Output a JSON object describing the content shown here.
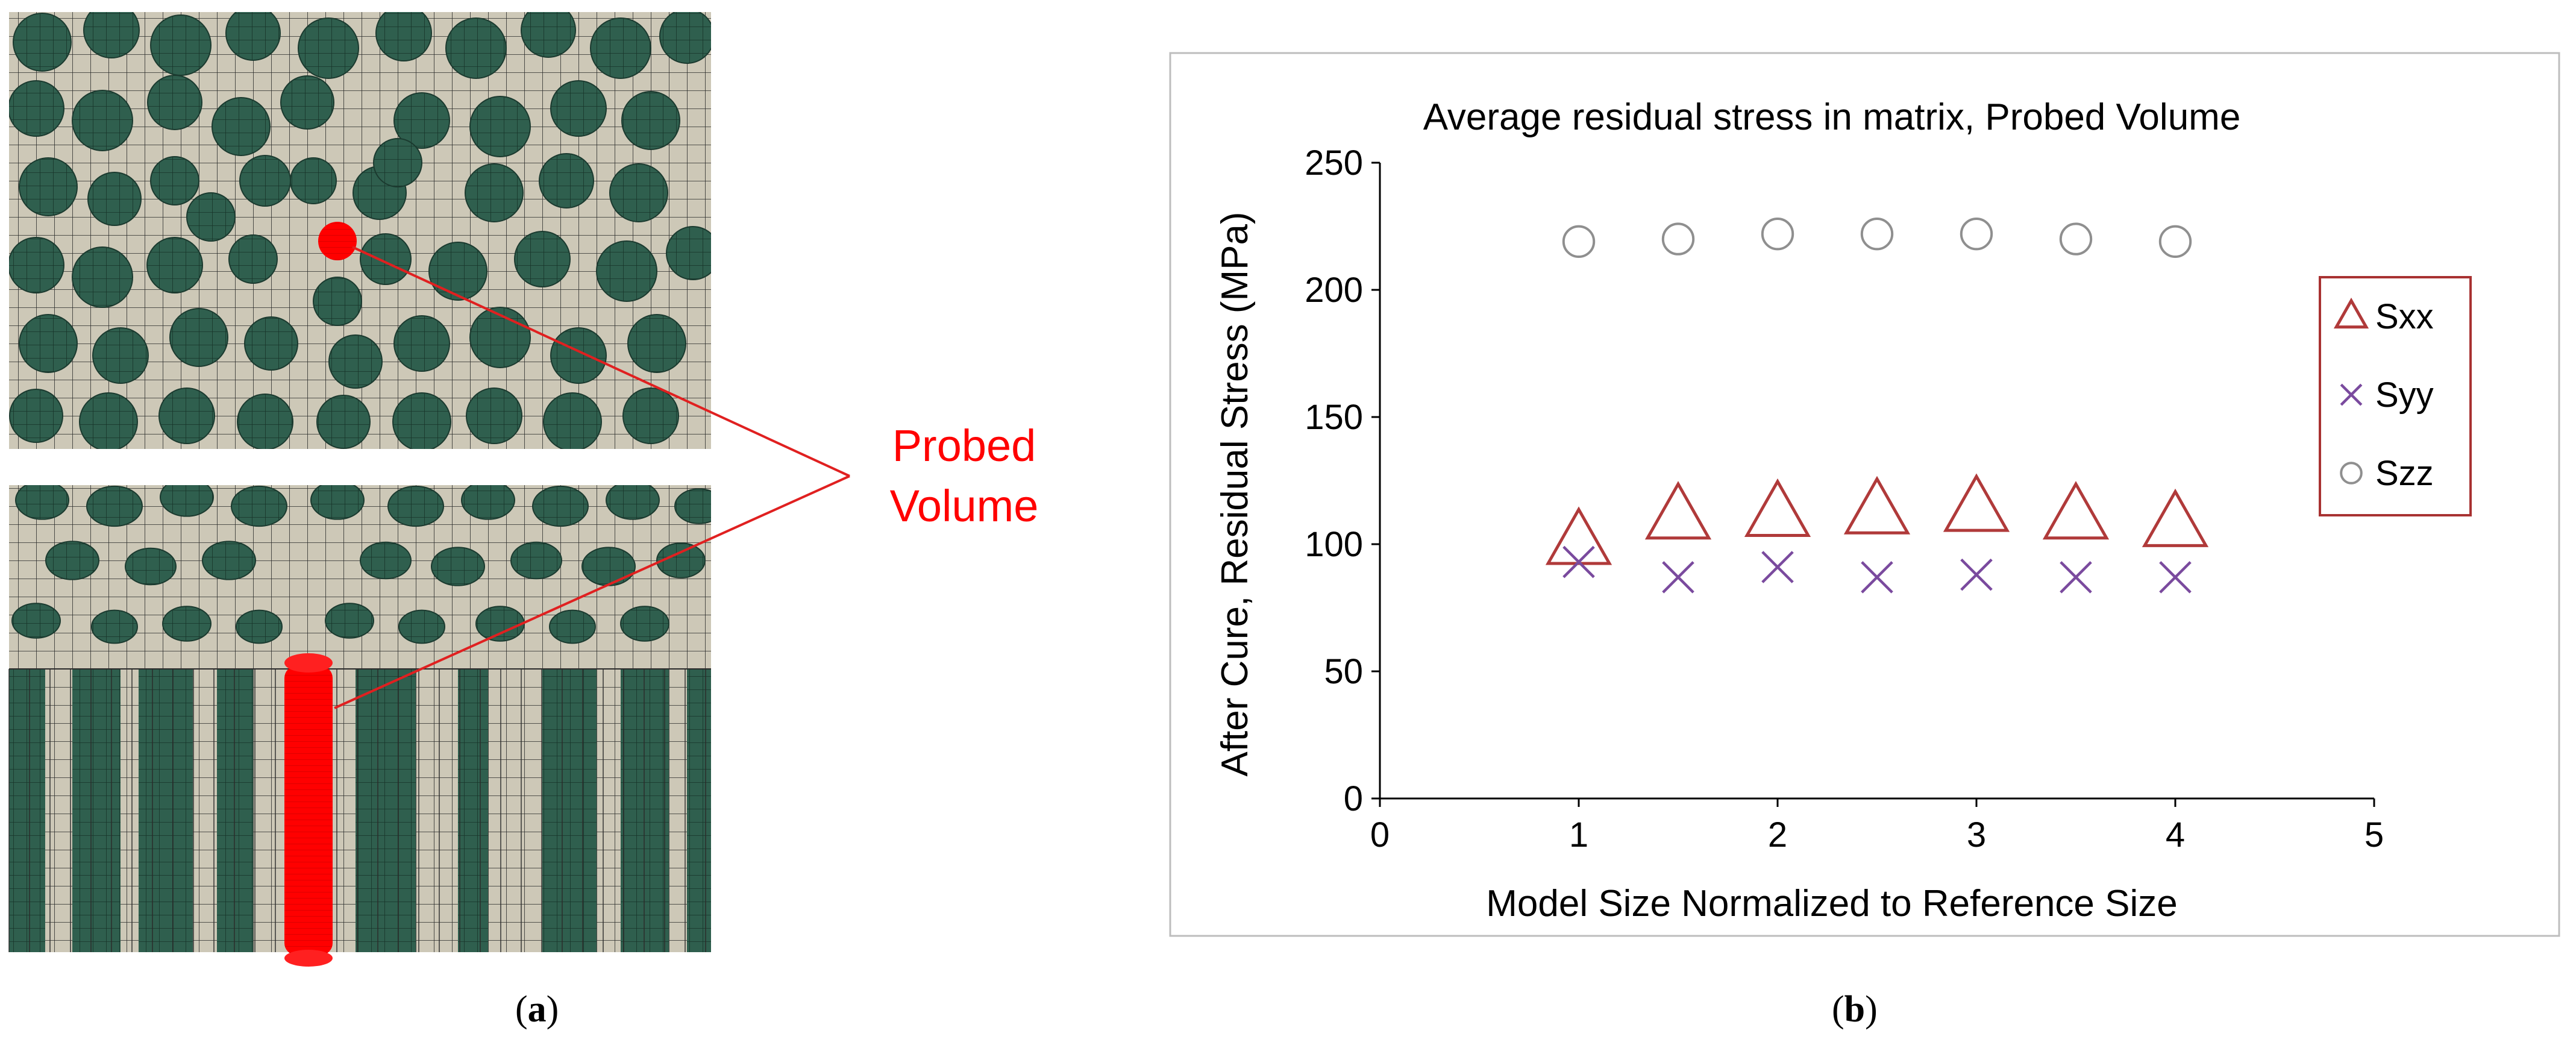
{
  "panel_a": {
    "callout_line1": "Probed",
    "callout_line2": "Volume",
    "label_letter": "a"
  },
  "panel_b": {
    "label_letter": "b"
  },
  "colors": {
    "fiber": "#2f5f4e",
    "matrix": "#cdc8b7",
    "mesh": "#2a2a2a",
    "probe": "#ff0000",
    "callout_text": "#ff0000",
    "sxx": "#b03a3a",
    "syy": "#7a4a9e",
    "szz": "#8f8f8f"
  },
  "chart_data": {
    "type": "scatter",
    "title": "Average residual stress in matrix, Probed Volume",
    "xlabel": "Model Size Normalized to Reference Size",
    "ylabel": "After Cure, Residual Stress (MPa)",
    "xlim": [
      0,
      5
    ],
    "ylim": [
      0,
      250
    ],
    "xticks": [
      0,
      1,
      2,
      3,
      4,
      5
    ],
    "yticks": [
      0,
      50,
      100,
      150,
      200,
      250
    ],
    "grid": false,
    "legend_position": "right",
    "x": [
      1,
      1.5,
      2,
      2.5,
      3,
      3.5,
      4
    ],
    "series": [
      {
        "name": "Sxx",
        "marker": "triangle",
        "values": [
          101,
          111,
          112,
          113,
          114,
          111,
          108
        ]
      },
      {
        "name": "Syy",
        "marker": "x",
        "values": [
          93,
          87,
          91,
          87,
          88,
          87,
          87
        ]
      },
      {
        "name": "Szz",
        "marker": "circle",
        "values": [
          219,
          220,
          222,
          222,
          222,
          220,
          219
        ]
      }
    ]
  }
}
